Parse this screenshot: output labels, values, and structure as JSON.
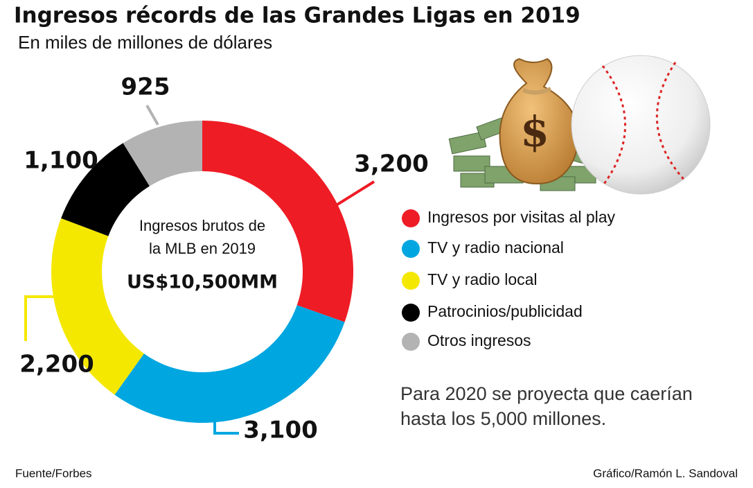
{
  "chart_data": {
    "type": "pie",
    "title": "Ingresos récords de las Grandes Ligas en 2019",
    "subtitle": "En miles de millones de dólares",
    "categories": [
      "Ingresos por visitas al play",
      "TV y radio nacional",
      "TV y radio local",
      "Patrocinios/publicidad",
      "Otros ingresos"
    ],
    "values": [
      3200,
      3100,
      2200,
      1100,
      925
    ],
    "value_labels": [
      "3,200",
      "3,100",
      "2,200",
      "1,100",
      "925"
    ],
    "colors": [
      "#ee1c25",
      "#00a6e0",
      "#f5e800",
      "#000000",
      "#b3b3b3"
    ],
    "center_text": [
      "Ingresos brutos de",
      "la MLB en 2019"
    ],
    "total_label": "US$10,500MM",
    "note": [
      "Para 2020 se proyecta que caerían",
      "hasta los 5,000 millones."
    ],
    "source": "Fuente/Forbes",
    "credit": "Gráfico/Ramón L. Sandoval"
  }
}
